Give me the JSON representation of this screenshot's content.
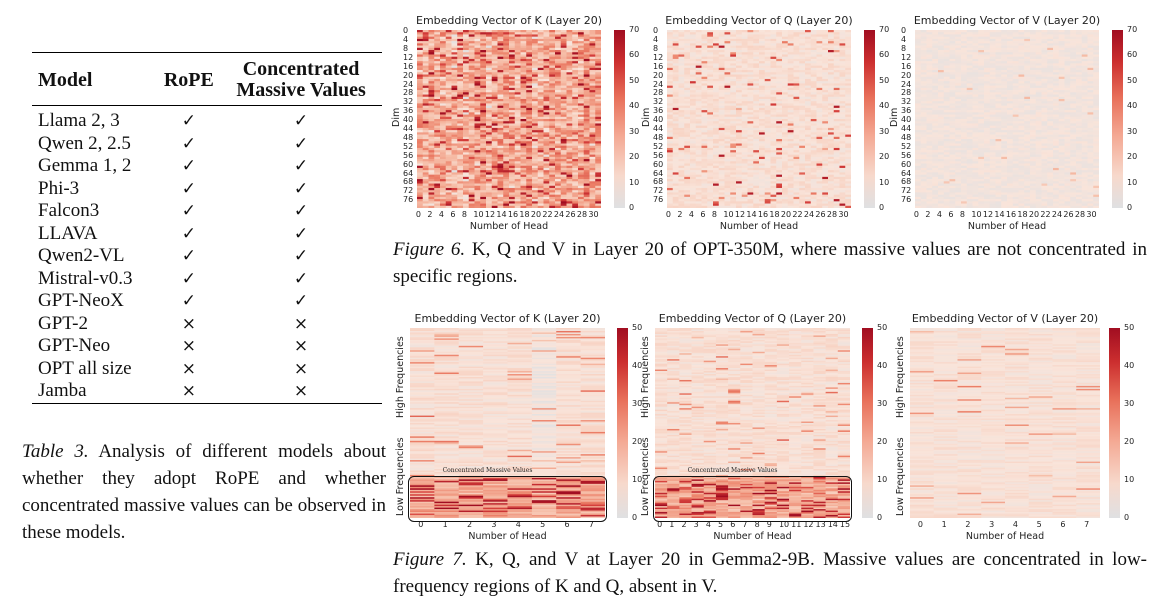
{
  "table3": {
    "headers": {
      "model": "Model",
      "rope": "RoPE",
      "cmv_line1": "Concentrated",
      "cmv_line2": "Massive Values"
    },
    "rows": [
      {
        "model": "Llama 2, 3",
        "rope": "✓",
        "cmv": "✓"
      },
      {
        "model": "Qwen 2, 2.5",
        "rope": "✓",
        "cmv": "✓"
      },
      {
        "model": "Gemma 1, 2",
        "rope": "✓",
        "cmv": "✓"
      },
      {
        "model": "Phi-3",
        "rope": "✓",
        "cmv": "✓"
      },
      {
        "model": "Falcon3",
        "rope": "✓",
        "cmv": "✓"
      },
      {
        "model": "LLAVA",
        "rope": "✓",
        "cmv": "✓"
      },
      {
        "model": "Qwen2-VL",
        "rope": "✓",
        "cmv": "✓"
      },
      {
        "model": "Mistral-v0.3",
        "rope": "✓",
        "cmv": "✓"
      },
      {
        "model": "GPT-NeoX",
        "rope": "✓",
        "cmv": "✓"
      },
      {
        "model": "GPT-2",
        "rope": "×",
        "cmv": "×"
      },
      {
        "model": "GPT-Neo",
        "rope": "×",
        "cmv": "×"
      },
      {
        "model": "OPT all size",
        "rope": "×",
        "cmv": "×"
      },
      {
        "model": "Jamba",
        "rope": "×",
        "cmv": "×"
      }
    ],
    "caption_label": "Table 3.",
    "caption_text": " Analysis of different models about whether they adopt RoPE and whether concentrated massive values can be observed in these models."
  },
  "figure6": {
    "caption_label": "Figure 6.",
    "caption_text": " K, Q and V in Layer 20 of OPT-350M, where massive values are not concentrated in specific regions."
  },
  "figure7": {
    "caption_label": "Figure 7.",
    "caption_text": " K, Q, and V at Layer 20 in Gemma2-9B. Massive values are concentrated in low-frequency regions of K and Q, absent in V."
  },
  "chart_data": [
    {
      "type": "heatmap",
      "id": "fig6-k",
      "title": "Embedding Vector of K (Layer 20)",
      "xlabel": "Number of Head",
      "ylabel": "Dim",
      "n_cols": 32,
      "n_rows": 80,
      "x_ticks": [
        "0",
        "2",
        "4",
        "6",
        "8",
        "10",
        "12",
        "14",
        "16",
        "18",
        "20",
        "22",
        "24",
        "26",
        "28",
        "30"
      ],
      "y_ticks": [
        "0",
        "4",
        "8",
        "12",
        "16",
        "20",
        "24",
        "28",
        "32",
        "36",
        "40",
        "44",
        "48",
        "52",
        "56",
        "60",
        "64",
        "68",
        "72",
        "76"
      ],
      "colorbar_ticks": [
        "0",
        "10",
        "20",
        "30",
        "40",
        "50",
        "60",
        "70"
      ],
      "vmin": 0,
      "vmax": 70,
      "density": "high",
      "level": 22
    },
    {
      "type": "heatmap",
      "id": "fig6-q",
      "title": "Embedding Vector of Q (Layer 20)",
      "xlabel": "Number of Head",
      "ylabel": "Dim",
      "n_cols": 32,
      "n_rows": 80,
      "x_ticks": [
        "0",
        "2",
        "4",
        "6",
        "8",
        "10",
        "12",
        "14",
        "16",
        "18",
        "20",
        "22",
        "24",
        "26",
        "28",
        "30"
      ],
      "y_ticks": [
        "0",
        "4",
        "8",
        "12",
        "16",
        "20",
        "24",
        "28",
        "32",
        "36",
        "40",
        "44",
        "48",
        "52",
        "56",
        "60",
        "64",
        "68",
        "72",
        "76"
      ],
      "colorbar_ticks": [
        "0",
        "10",
        "20",
        "30",
        "40",
        "50",
        "60",
        "70"
      ],
      "vmin": 0,
      "vmax": 70,
      "density": "medium",
      "level": 8
    },
    {
      "type": "heatmap",
      "id": "fig6-v",
      "title": "Embedding Vector of V (Layer 20)",
      "xlabel": "Number of Head",
      "ylabel": "Dim",
      "n_cols": 32,
      "n_rows": 80,
      "x_ticks": [
        "0",
        "2",
        "4",
        "6",
        "8",
        "10",
        "12",
        "14",
        "16",
        "18",
        "20",
        "22",
        "24",
        "26",
        "28",
        "30"
      ],
      "y_ticks": [
        "0",
        "4",
        "8",
        "12",
        "16",
        "20",
        "24",
        "28",
        "32",
        "36",
        "40",
        "44",
        "48",
        "52",
        "56",
        "60",
        "64",
        "68",
        "72",
        "76"
      ],
      "colorbar_ticks": [
        "0",
        "10",
        "20",
        "30",
        "40",
        "50",
        "60",
        "70"
      ],
      "vmin": 0,
      "vmax": 70,
      "density": "low",
      "level": 4
    },
    {
      "type": "heatmap",
      "id": "fig7-k",
      "title": "Embedding Vector of K (Layer 20)",
      "xlabel": "Number of Head",
      "ylabel_high": "High Frequencies",
      "ylabel_low": "Low Frequencies",
      "n_cols": 8,
      "n_rows": 128,
      "x_ticks": [
        "0",
        "1",
        "2",
        "3",
        "4",
        "5",
        "6",
        "7"
      ],
      "colorbar_ticks": [
        "0",
        "10",
        "20",
        "30",
        "40",
        "50"
      ],
      "vmin": 0,
      "vmax": 50,
      "density": "low-concentrated",
      "level": 10,
      "annotation": "Concentrated Massive Values"
    },
    {
      "type": "heatmap",
      "id": "fig7-q",
      "title": "Embedding Vector of Q (Layer 20)",
      "xlabel": "Number of Head",
      "ylabel_high": "High Frequencies",
      "ylabel_low": "Low Frequencies",
      "n_cols": 16,
      "n_rows": 128,
      "x_ticks": [
        "0",
        "1",
        "2",
        "3",
        "4",
        "5",
        "6",
        "7",
        "8",
        "9",
        "10",
        "11",
        "12",
        "13",
        "14",
        "15"
      ],
      "colorbar_ticks": [
        "0",
        "10",
        "20",
        "30",
        "40",
        "50"
      ],
      "vmin": 0,
      "vmax": 50,
      "density": "low-concentrated",
      "level": 8,
      "annotation": "Concentrated Massive Values"
    },
    {
      "type": "heatmap",
      "id": "fig7-v",
      "title": "Embedding Vector of V (Layer 20)",
      "xlabel": "Number of Head",
      "ylabel_high": "High Frequencies",
      "ylabel_low": "Low Frequencies",
      "n_cols": 8,
      "n_rows": 128,
      "x_ticks": [
        "0",
        "1",
        "2",
        "3",
        "4",
        "5",
        "6",
        "7"
      ],
      "colorbar_ticks": [
        "0",
        "10",
        "20",
        "30",
        "40",
        "50"
      ],
      "vmin": 0,
      "vmax": 50,
      "density": "uniform",
      "level": 7
    }
  ]
}
